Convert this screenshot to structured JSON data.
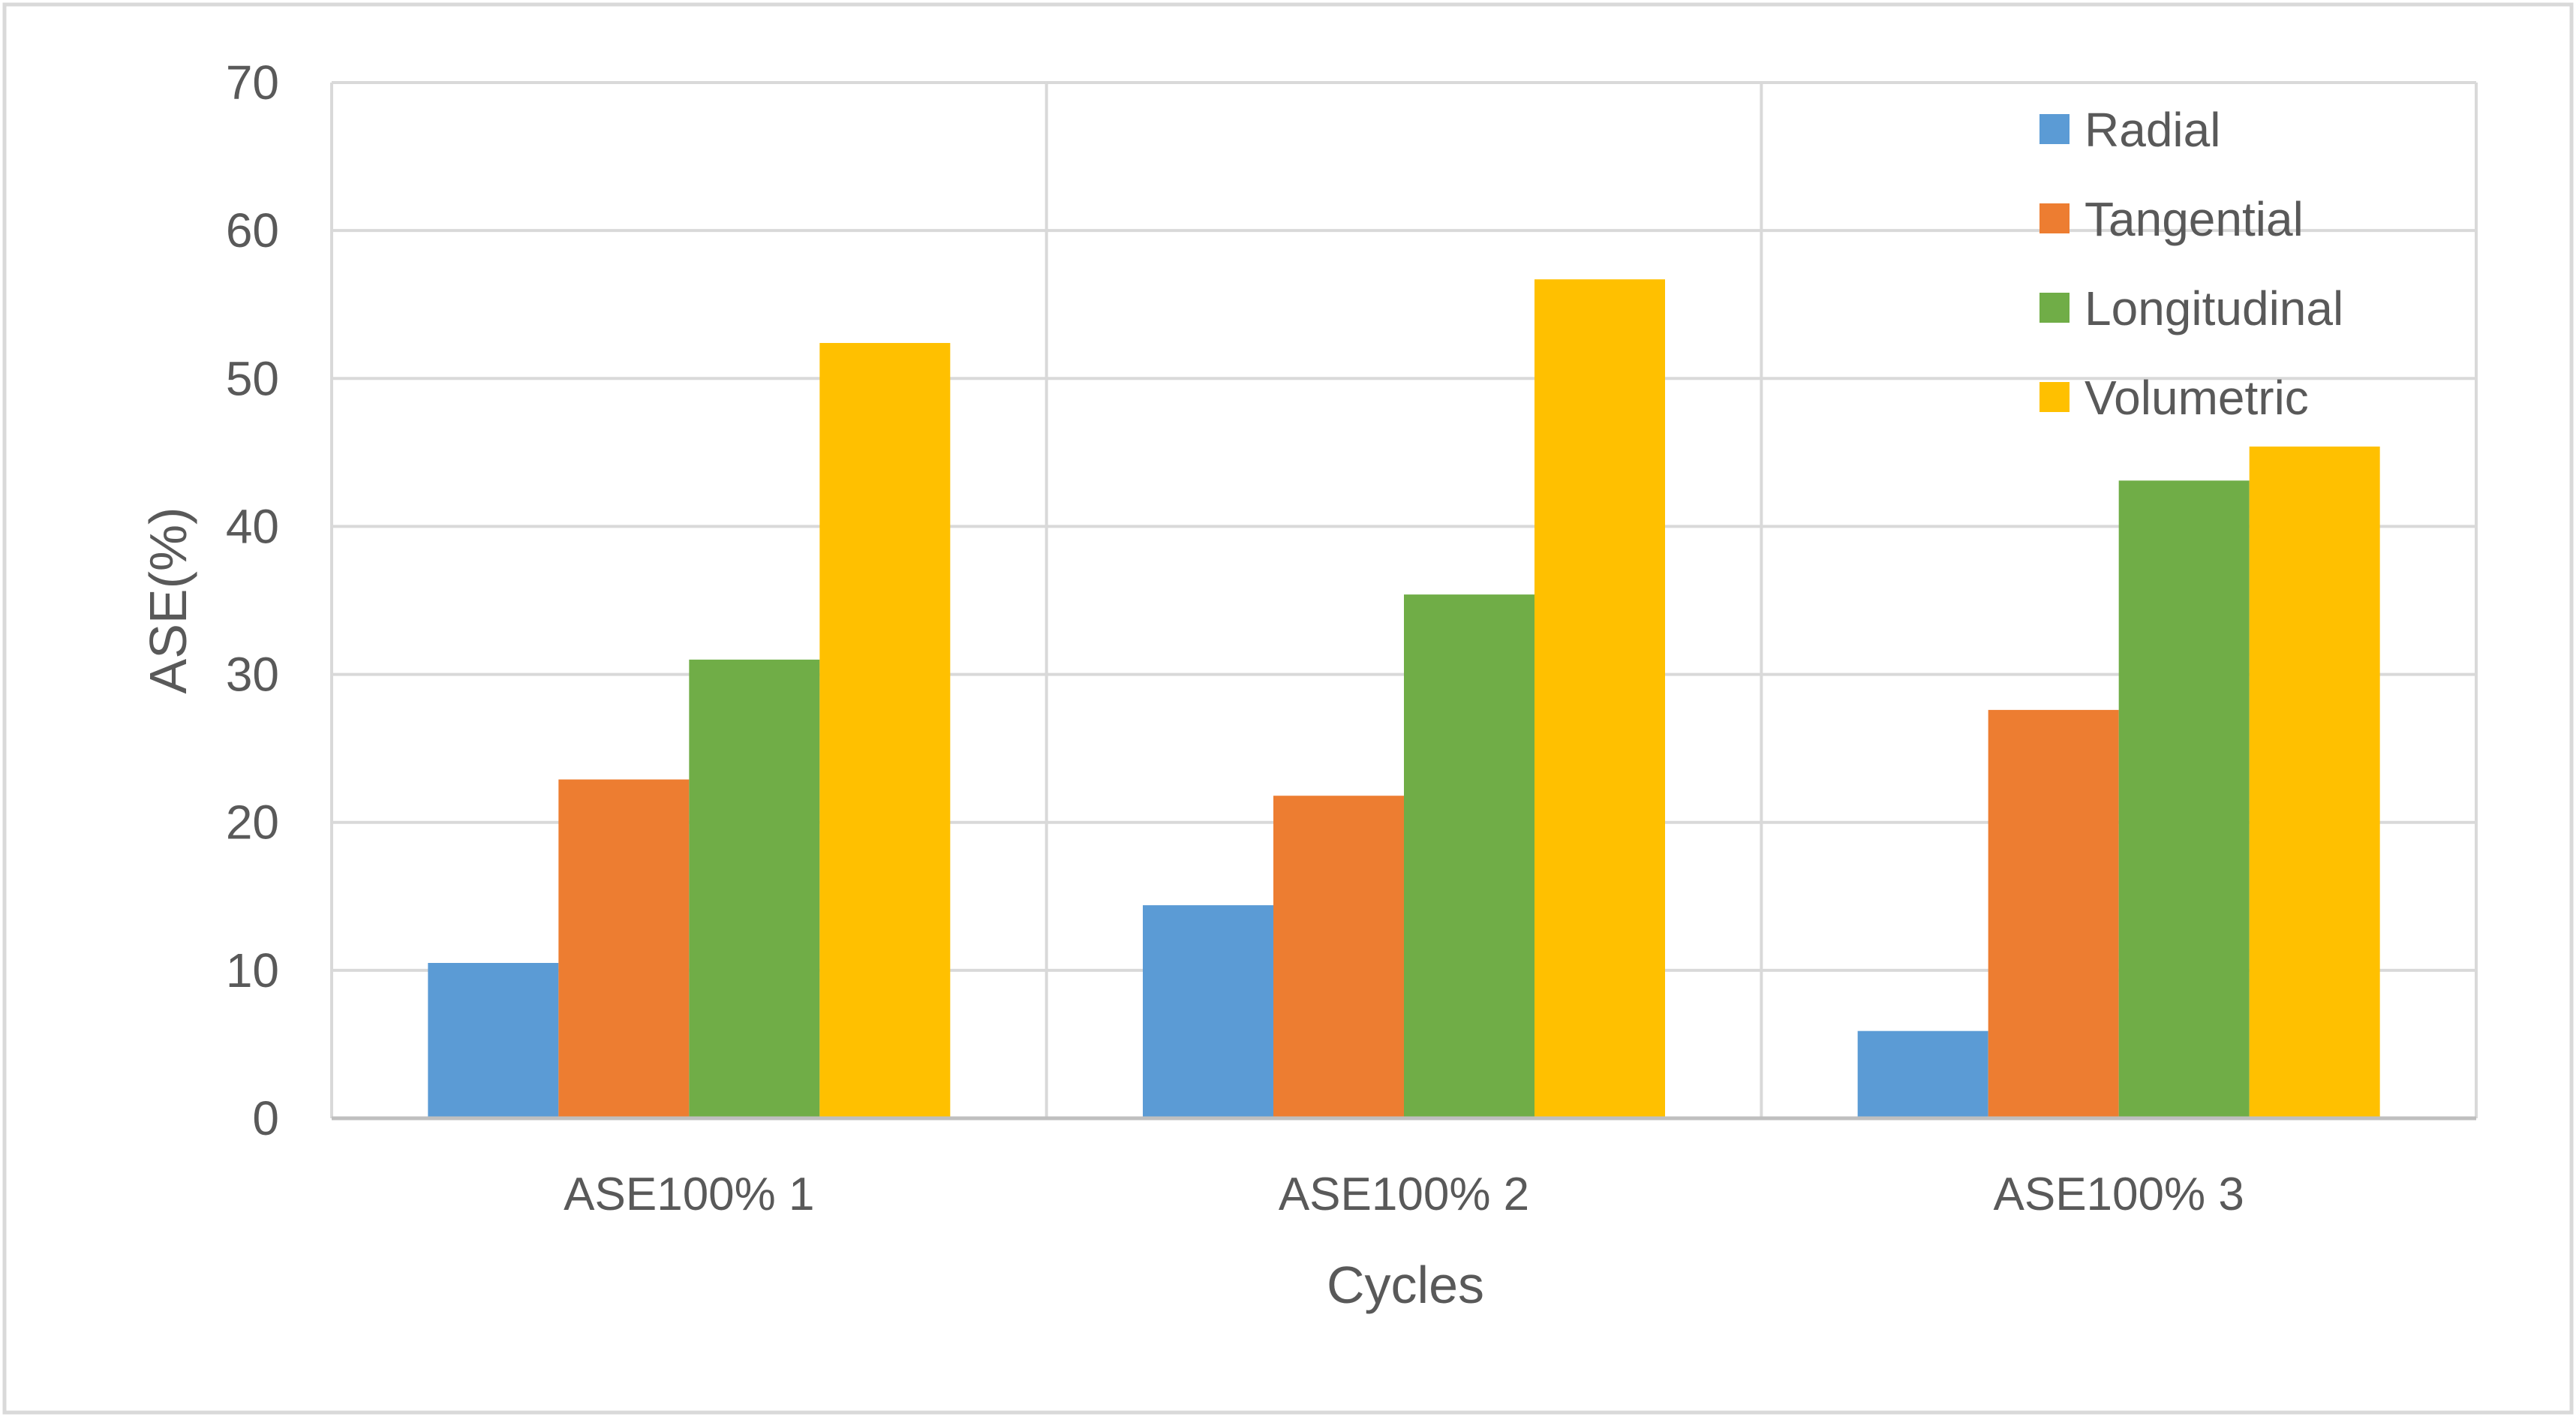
{
  "chart_data": {
    "type": "bar",
    "title": "",
    "xlabel": "Cycles",
    "ylabel": "ASE(%)",
    "ylim": [
      0,
      70
    ],
    "yticks": [
      0,
      10,
      20,
      30,
      40,
      50,
      60,
      70
    ],
    "grid": true,
    "legend_position": "top-right",
    "categories": [
      "ASE100%  1",
      "ASE100%  2",
      "ASE100%  3"
    ],
    "series": [
      {
        "name": "Radial",
        "color": "#5B9BD5",
        "values": [
          10.5,
          14.4,
          5.9
        ]
      },
      {
        "name": "Tangential",
        "color": "#ED7D31",
        "values": [
          22.9,
          21.8,
          27.6
        ]
      },
      {
        "name": "Longitudinal",
        "color": "#70AD47",
        "values": [
          31.0,
          35.4,
          43.1
        ]
      },
      {
        "name": "Volumetric",
        "color": "#FFC000",
        "values": [
          52.4,
          56.7,
          45.4
        ]
      }
    ]
  }
}
